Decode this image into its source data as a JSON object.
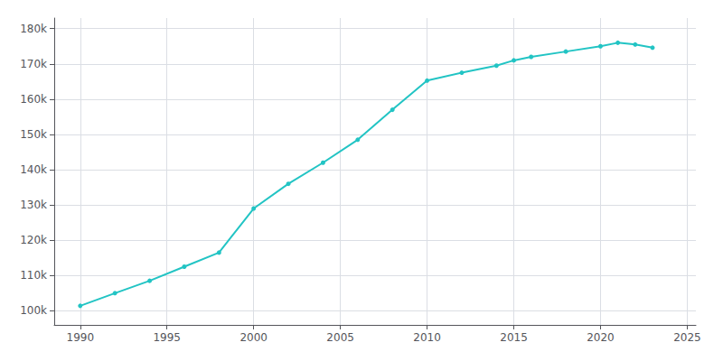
{
  "chart_data": {
    "type": "line",
    "x": [
      1990,
      1992,
      1994,
      1996,
      1998,
      2000,
      2002,
      2004,
      2006,
      2008,
      2010,
      2012,
      2014,
      2015,
      2016,
      2018,
      2020,
      2021,
      2022,
      2023
    ],
    "values": [
      101409,
      105000,
      108500,
      112500,
      116500,
      129000,
      136000,
      142000,
      148500,
      157000,
      165269,
      167500,
      169500,
      171000,
      172000,
      173500,
      175000,
      176000,
      175500,
      174600
    ],
    "color": "#22c4c4",
    "marker": "circle",
    "xlim": [
      1988.5,
      2025.5
    ],
    "ylim": [
      96000,
      183000
    ],
    "xticks": [
      1990,
      1995,
      2000,
      2005,
      2010,
      2015,
      2020,
      2025
    ],
    "yticks": [
      {
        "value": 100000,
        "label": "100k"
      },
      {
        "value": 110000,
        "label": "110k"
      },
      {
        "value": 120000,
        "label": "120k"
      },
      {
        "value": 130000,
        "label": "130k"
      },
      {
        "value": 140000,
        "label": "140k"
      },
      {
        "value": 150000,
        "label": "150k"
      },
      {
        "value": 160000,
        "label": "160k"
      },
      {
        "value": 170000,
        "label": "170k"
      },
      {
        "value": 180000,
        "label": "180k"
      }
    ],
    "grid": true
  }
}
